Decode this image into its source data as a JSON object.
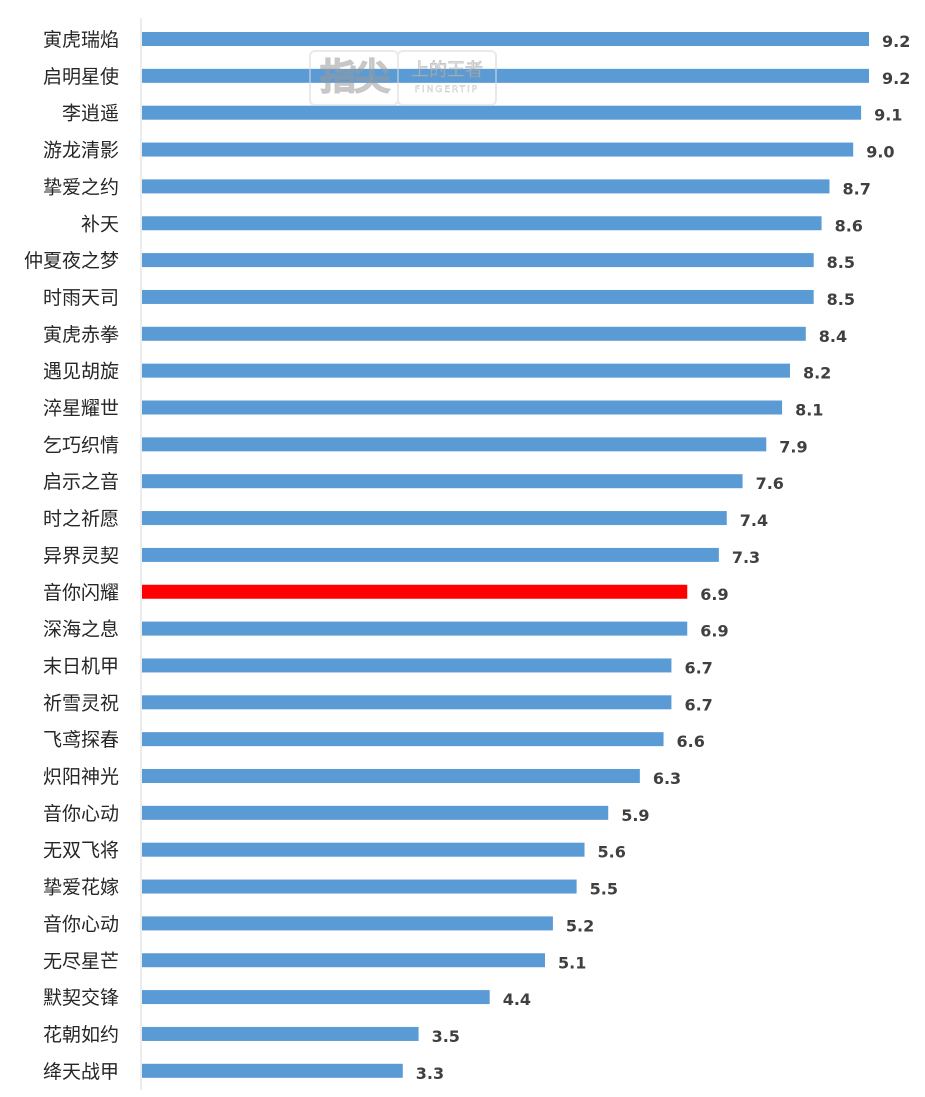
{
  "chart_data": {
    "type": "bar",
    "orientation": "horizontal",
    "categories": [
      "寅虎瑞焰",
      "启明星使",
      "李逍遥",
      "游龙清影",
      "挚爱之约",
      "补天",
      "仲夏夜之梦",
      "时雨天司",
      "寅虎赤拳",
      "遇见胡旋",
      "淬星耀世",
      "乞巧织情",
      "启示之音",
      "时之祈愿",
      "异界灵契",
      "音你闪耀",
      "深海之息",
      "末日机甲",
      "祈雪灵祝",
      "飞鸢探春",
      "炽阳神光",
      "音你心动",
      "无双飞将",
      "挚爱花嫁",
      "音你心动",
      "无尽星芒",
      "默契交锋",
      "花朝如约",
      "绛天战甲"
    ],
    "values": [
      9.2,
      9.2,
      9.1,
      9.0,
      8.7,
      8.6,
      8.5,
      8.5,
      8.4,
      8.2,
      8.1,
      7.9,
      7.6,
      7.4,
      7.3,
      6.9,
      6.9,
      6.7,
      6.7,
      6.6,
      6.3,
      5.9,
      5.6,
      5.5,
      5.2,
      5.1,
      4.4,
      3.5,
      3.3
    ],
    "value_labels": [
      "9.2",
      "9.2",
      "9.1",
      "9.0",
      "8.7",
      "8.6",
      "8.5",
      "8.5",
      "8.4",
      "8.2",
      "8.1",
      "7.9",
      "7.6",
      "7.4",
      "7.3",
      "6.9",
      "6.9",
      "6.7",
      "6.7",
      "6.6",
      "6.3",
      "5.9",
      "5.6",
      "5.5",
      "5.2",
      "5.1",
      "4.4",
      "3.5",
      "3.3"
    ],
    "highlight_index": 15,
    "colors": {
      "bar": "#5b9bd5",
      "highlight": "#ff0000",
      "axis": "#d9d9d9"
    },
    "xlim": [
      0,
      9.2
    ],
    "grid": false,
    "legend": "none"
  },
  "watermark": {
    "main": "指尖",
    "sub": "上的王者",
    "en": "FINGERTIP"
  }
}
